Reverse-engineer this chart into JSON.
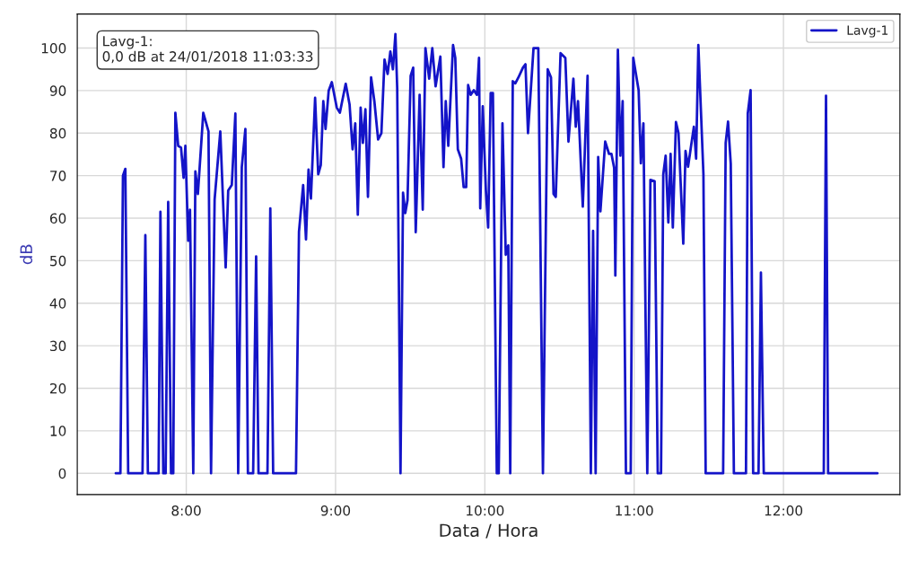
{
  "chart_data": {
    "type": "line",
    "xlabel": "Data / Hora",
    "ylabel": "dB",
    "xlim": [
      7.27,
      12.78
    ],
    "ylim": [
      -5,
      108
    ],
    "xticks": [
      {
        "value": 8,
        "label": "8:00"
      },
      {
        "value": 9,
        "label": "9:00"
      },
      {
        "value": 10,
        "label": "10:00"
      },
      {
        "value": 11,
        "label": "11:00"
      },
      {
        "value": 12,
        "label": "12:00"
      }
    ],
    "yticks": [
      0,
      10,
      20,
      30,
      40,
      50,
      60,
      70,
      80,
      90,
      100
    ],
    "grid": true,
    "legend": "top right",
    "marker": "none",
    "line_style": "solid",
    "annotations": [
      "Lavg-1:\n0,0 dB at 24/01/2018 11:03:33"
    ],
    "series": [
      {
        "name": "Lavg-1",
        "color": "#1414c8",
        "x": [
          7.528,
          7.559,
          7.576,
          7.592,
          7.611,
          7.707,
          7.726,
          7.743,
          7.815,
          7.827,
          7.846,
          7.862,
          7.879,
          7.898,
          7.913,
          7.927,
          7.946,
          7.965,
          7.982,
          7.994,
          8.013,
          8.025,
          8.047,
          8.061,
          8.078,
          8.114,
          8.149,
          8.166,
          8.19,
          8.228,
          8.264,
          8.281,
          8.305,
          8.329,
          8.348,
          8.372,
          8.396,
          8.413,
          8.448,
          8.468,
          8.484,
          8.544,
          8.563,
          8.582,
          8.735,
          8.755,
          8.783,
          8.802,
          8.819,
          8.835,
          8.863,
          8.884,
          8.901,
          8.918,
          8.933,
          8.954,
          8.975,
          9.008,
          9.029,
          9.068,
          9.094,
          9.114,
          9.132,
          9.149,
          9.168,
          9.183,
          9.2,
          9.217,
          9.238,
          9.26,
          9.285,
          9.307,
          9.328,
          9.349,
          9.367,
          9.384,
          9.401,
          9.413,
          9.435,
          9.452,
          9.467,
          9.482,
          9.503,
          9.52,
          9.537,
          9.563,
          9.584,
          9.602,
          9.627,
          9.648,
          9.67,
          9.702,
          9.723,
          9.738,
          9.755,
          9.787,
          9.802,
          9.819,
          9.841,
          9.858,
          9.875,
          9.888,
          9.905,
          9.926,
          9.947,
          9.961,
          9.969,
          9.986,
          10.007,
          10.022,
          10.039,
          10.054,
          10.08,
          10.093,
          10.118,
          10.14,
          10.157,
          10.17,
          10.187,
          10.204,
          10.225,
          10.255,
          10.272,
          10.289,
          10.326,
          10.358,
          10.389,
          10.421,
          10.443,
          10.46,
          10.475,
          10.507,
          10.539,
          10.56,
          10.593,
          10.609,
          10.624,
          10.656,
          10.688,
          10.71,
          10.725,
          10.742,
          10.759,
          10.774,
          10.806,
          10.832,
          10.848,
          10.866,
          10.874,
          10.891,
          10.908,
          10.923,
          10.945,
          10.977,
          10.994,
          11.03,
          11.045,
          11.062,
          11.088,
          11.109,
          11.137,
          11.158,
          11.18,
          11.195,
          11.211,
          11.229,
          11.244,
          11.259,
          11.28,
          11.297,
          11.329,
          11.344,
          11.361,
          11.4,
          11.415,
          11.43,
          11.464,
          11.479,
          11.596,
          11.613,
          11.629,
          11.647,
          11.668,
          11.749,
          11.761,
          11.78,
          11.797,
          11.833,
          11.849,
          11.868,
          12.27,
          12.285,
          12.299,
          12.629
        ],
        "values": [
          0,
          0,
          70,
          71.6,
          0,
          0,
          56,
          0,
          0,
          61.5,
          0,
          0,
          63.8,
          0,
          0,
          84.8,
          77,
          76.6,
          69.5,
          77,
          54.7,
          62,
          0,
          71,
          65.7,
          84.8,
          80.4,
          0,
          64.4,
          80.4,
          48.4,
          66.5,
          67.8,
          84.6,
          0,
          72,
          81,
          0,
          0,
          51,
          0,
          0,
          62.3,
          0,
          0,
          56.8,
          67.8,
          55,
          71.4,
          64.6,
          88.3,
          70.3,
          72.5,
          87.5,
          81,
          90,
          92,
          86,
          84.8,
          91.6,
          86.7,
          76.2,
          82.3,
          60.8,
          86,
          77.7,
          85.6,
          65,
          93.1,
          87.5,
          78.5,
          80,
          97.3,
          93.9,
          99.2,
          95,
          103.3,
          90.5,
          0,
          66,
          61.2,
          64.2,
          93.5,
          95.4,
          56.7,
          89,
          62,
          100,
          92.8,
          100,
          91,
          98,
          72,
          87.5,
          77,
          100.7,
          97.7,
          76.2,
          74,
          67.3,
          67.3,
          91.3,
          89,
          90.1,
          89,
          97.7,
          62.3,
          86.3,
          66.5,
          57.8,
          89.4,
          89.4,
          0,
          0,
          82.3,
          51.4,
          53.6,
          0,
          92.2,
          91.7,
          93.1,
          95.4,
          96.2,
          80,
          100,
          100,
          0,
          95,
          93.1,
          65.7,
          65,
          98.8,
          97.7,
          78,
          92.8,
          81.5,
          87.5,
          62.7,
          93.5,
          0,
          57,
          0,
          74.4,
          61.6,
          78,
          75.1,
          75.1,
          71.8,
          46.5,
          99.6,
          74.7,
          87.5,
          0,
          0,
          97.7,
          90.1,
          72.9,
          82.3,
          0,
          69,
          68.7,
          0,
          0,
          70.3,
          74.7,
          59,
          75.1,
          57.8,
          82.6,
          80,
          54,
          75.8,
          72.1,
          81.5,
          74,
          100.7,
          70.3,
          0,
          0,
          77.7,
          82.7,
          72.8,
          0,
          0,
          84.6,
          90.1,
          0,
          0,
          47.2,
          0,
          0,
          88.8,
          0,
          0
        ]
      }
    ]
  }
}
